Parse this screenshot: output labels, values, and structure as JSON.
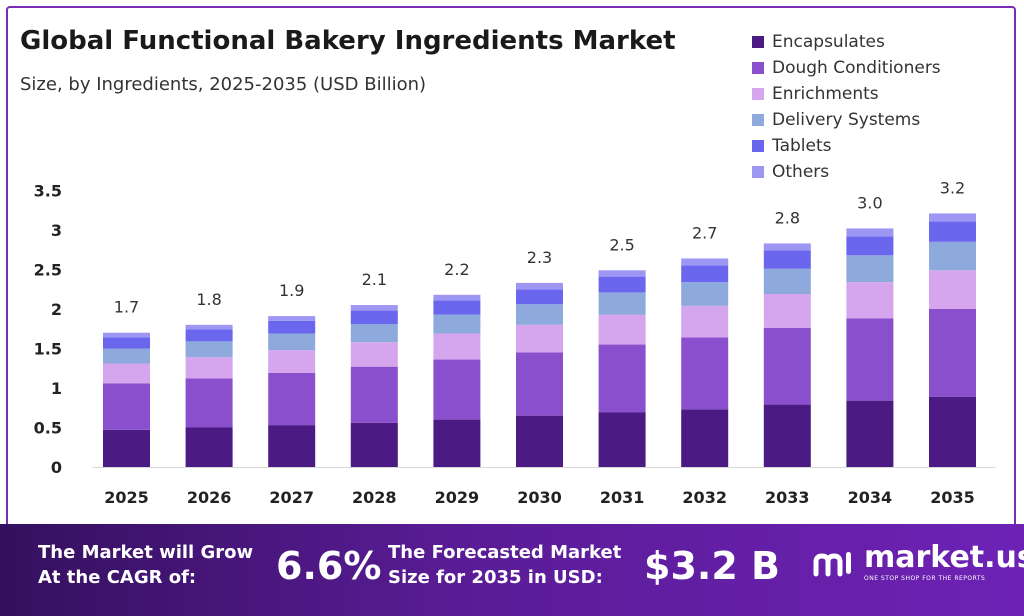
{
  "chart_data": {
    "type": "bar",
    "stacked": true,
    "title": "Global Functional Bakery Ingredients Market",
    "subtitle": "Size, by Ingredients, 2025-2035 (USD Billion)",
    "xlabel": "",
    "ylabel": "",
    "ylim": [
      0,
      3.5
    ],
    "yticks": [
      "0",
      "0.5",
      "1",
      "1.5",
      "2",
      "2.5",
      "3",
      "3.5"
    ],
    "grid": false,
    "legend_position": "top-right",
    "categories": [
      "2025",
      "2026",
      "2027",
      "2028",
      "2029",
      "2030",
      "2031",
      "2032",
      "2033",
      "2034",
      "2035"
    ],
    "totals": [
      "1.7",
      "1.8",
      "1.9",
      "2.1",
      "2.2",
      "2.3",
      "2.5",
      "2.7",
      "2.8",
      "3.0",
      "3.2"
    ],
    "series": [
      {
        "name": "Encapsulates",
        "color": "#4b1a82",
        "values": [
          0.47,
          0.5,
          0.53,
          0.56,
          0.6,
          0.65,
          0.69,
          0.73,
          0.79,
          0.84,
          0.89
        ]
      },
      {
        "name": "Dough Conditioners",
        "color": "#8a4fcc",
        "values": [
          0.59,
          0.62,
          0.66,
          0.71,
          0.76,
          0.8,
          0.86,
          0.91,
          0.97,
          1.04,
          1.11
        ]
      },
      {
        "name": "Enrichments",
        "color": "#d5a6ee",
        "values": [
          0.25,
          0.27,
          0.29,
          0.31,
          0.33,
          0.35,
          0.38,
          0.4,
          0.43,
          0.46,
          0.49
        ]
      },
      {
        "name": "Delivery Systems",
        "color": "#8ea9dc",
        "values": [
          0.19,
          0.2,
          0.21,
          0.23,
          0.24,
          0.26,
          0.28,
          0.3,
          0.32,
          0.34,
          0.36
        ]
      },
      {
        "name": "Tablets",
        "color": "#6b66ee",
        "values": [
          0.14,
          0.15,
          0.16,
          0.17,
          0.18,
          0.19,
          0.2,
          0.21,
          0.23,
          0.24,
          0.26
        ]
      },
      {
        "name": "Others",
        "color": "#9d97f3",
        "values": [
          0.06,
          0.06,
          0.06,
          0.07,
          0.07,
          0.08,
          0.08,
          0.09,
          0.09,
          0.1,
          0.1
        ]
      }
    ]
  },
  "footer": {
    "cagr_label_line1": "The Market will Grow",
    "cagr_label_line2": "At the CAGR of:",
    "cagr_value": "6.6%",
    "forecast_label_line1": "The Forecasted Market",
    "forecast_label_line2": "Size for 2035 in USD:",
    "forecast_value": "$3.2 B",
    "brand_name": "market.us",
    "brand_tagline": "ONE STOP SHOP FOR THE REPORTS"
  }
}
